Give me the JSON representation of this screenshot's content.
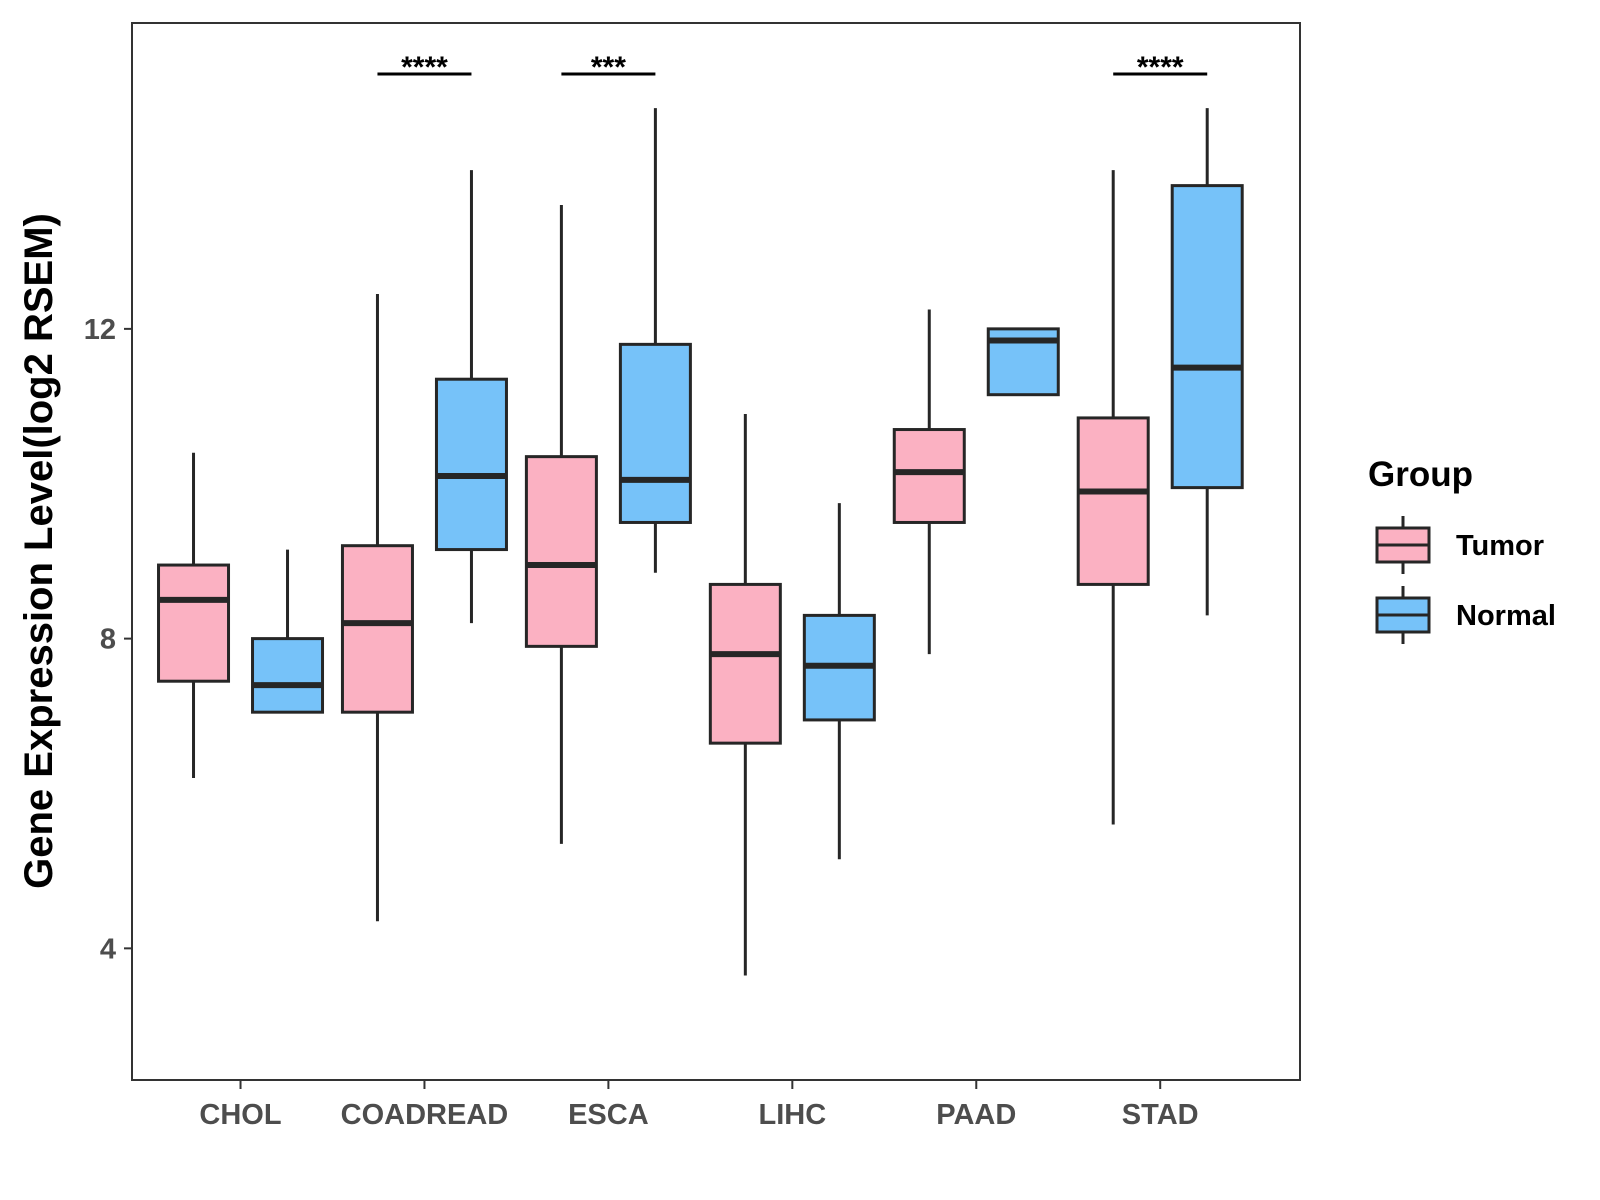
{
  "chart_data": {
    "type": "boxplot",
    "title": "",
    "xlabel": "",
    "ylabel": "Gene Expression Level(log2 RSEM)",
    "ylim": [
      2.3,
      15.95
    ],
    "yticks": [
      4,
      8,
      12
    ],
    "grid": false,
    "legend": {
      "title": "Group",
      "position": "right",
      "entries": [
        {
          "label": "Tumor",
          "color": "#fbb1c2"
        },
        {
          "label": "Normal",
          "color": "#76c2f9"
        }
      ]
    },
    "categories": [
      "CHOL",
      "COADREAD",
      "ESCA",
      "LIHC",
      "PAAD",
      "STAD"
    ],
    "series": [
      {
        "name": "Tumor",
        "color": "#fbb1c2",
        "boxes": [
          {
            "min": 6.2,
            "q1": 7.45,
            "median": 8.5,
            "q3": 8.95,
            "max": 10.4
          },
          {
            "min": 4.35,
            "q1": 7.05,
            "median": 8.2,
            "q3": 9.2,
            "max": 12.45
          },
          {
            "min": 5.35,
            "q1": 7.9,
            "median": 8.95,
            "q3": 10.35,
            "max": 13.6
          },
          {
            "min": 3.65,
            "q1": 6.65,
            "median": 7.8,
            "q3": 8.7,
            "max": 10.9
          },
          {
            "min": 7.8,
            "q1": 9.5,
            "median": 10.15,
            "q3": 10.7,
            "max": 12.25
          },
          {
            "min": 5.6,
            "q1": 8.7,
            "median": 9.9,
            "q3": 10.85,
            "max": 14.05
          }
        ]
      },
      {
        "name": "Normal",
        "color": "#76c2f9",
        "boxes": [
          {
            "min": 7.05,
            "q1": 7.05,
            "median": 7.4,
            "q3": 8.0,
            "max": 9.15
          },
          {
            "min": 8.2,
            "q1": 9.15,
            "median": 10.1,
            "q3": 11.35,
            "max": 14.05
          },
          {
            "min": 8.85,
            "q1": 9.5,
            "median": 10.05,
            "q3": 11.8,
            "max": 14.85
          },
          {
            "min": 5.15,
            "q1": 6.95,
            "median": 7.65,
            "q3": 8.3,
            "max": 9.75
          },
          {
            "min": 11.15,
            "q1": 11.15,
            "median": 11.85,
            "q3": 12.0,
            "max": 12.0
          },
          {
            "min": 8.3,
            "q1": 9.95,
            "median": 11.5,
            "q3": 13.85,
            "max": 14.85
          }
        ]
      }
    ],
    "annotations": [
      {
        "category": "COADREAD",
        "label": "****"
      },
      {
        "category": "ESCA",
        "label": "***"
      },
      {
        "category": "STAD",
        "label": "****"
      }
    ]
  }
}
